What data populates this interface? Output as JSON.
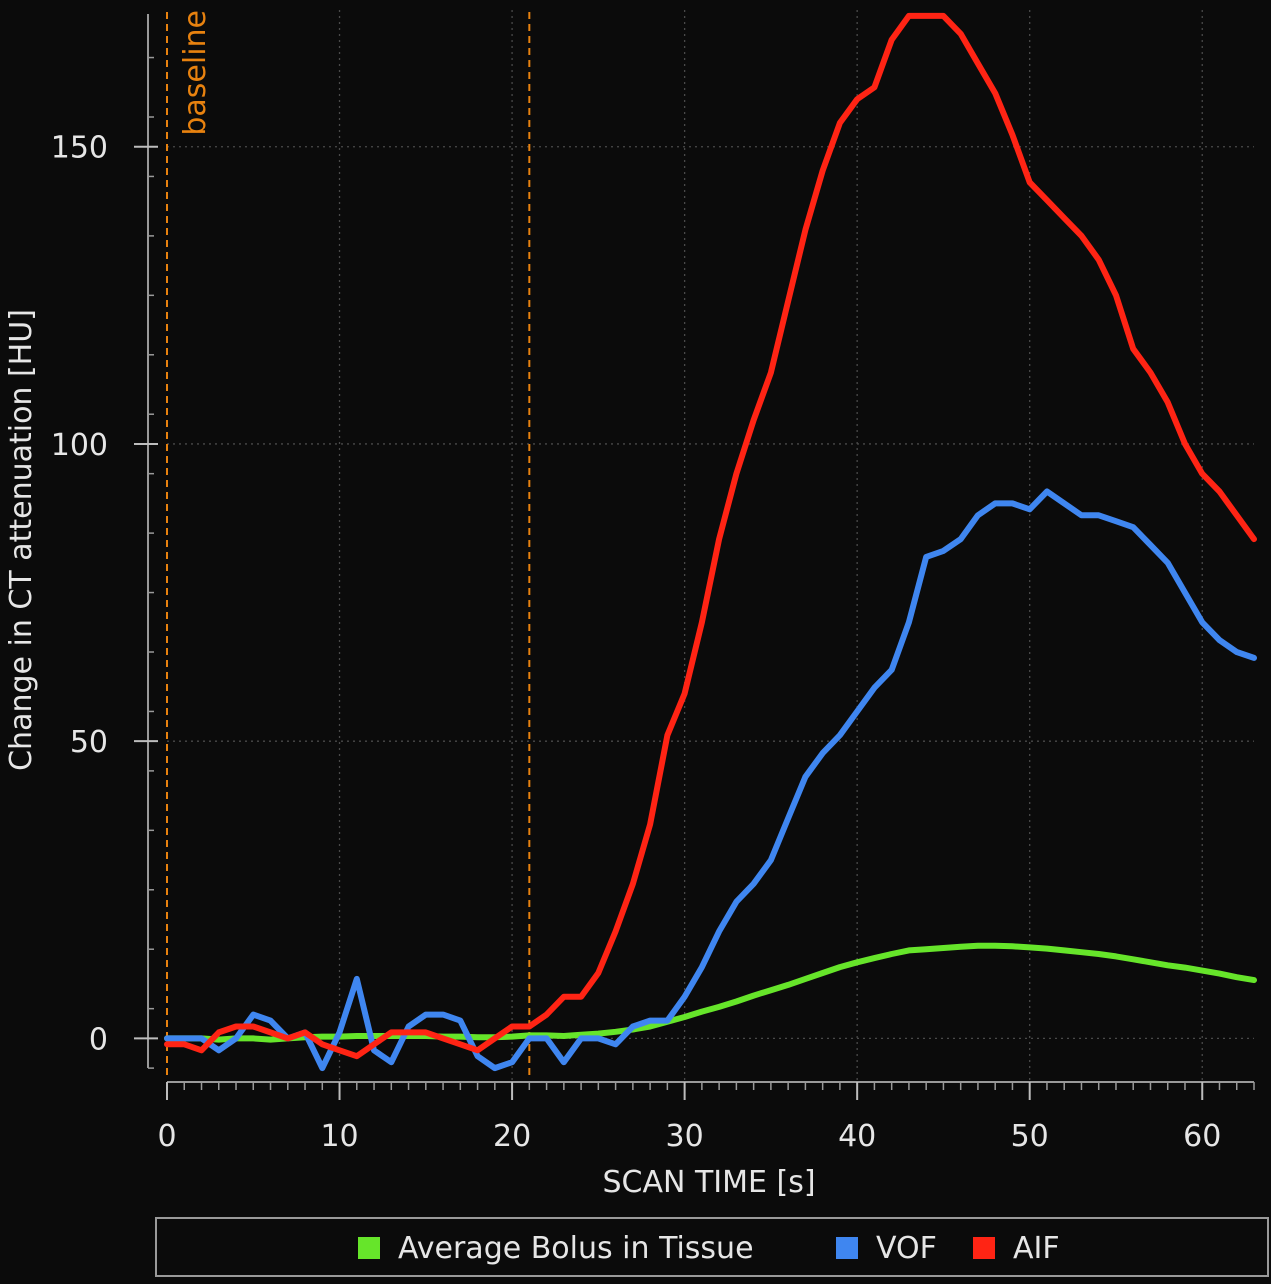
{
  "chart_data": {
    "type": "line",
    "title": "",
    "xlabel": "SCAN TIME [s]",
    "ylabel": "Change in CT attenuation [HU]",
    "xlim": [
      0,
      63
    ],
    "ylim": [
      -7,
      173
    ],
    "x_ticks": [
      0,
      10,
      20,
      30,
      40,
      50,
      60
    ],
    "y_ticks": [
      0,
      50,
      100,
      150
    ],
    "grid": true,
    "legend_position": "bottom",
    "annotations": [
      {
        "type": "vline",
        "x": 0,
        "label": "baseline",
        "color": "#e8820f"
      },
      {
        "type": "vline",
        "x": 21,
        "label": "",
        "color": "#e8820f"
      }
    ],
    "x": [
      0,
      1,
      2,
      3,
      4,
      5,
      6,
      7,
      8,
      9,
      10,
      11,
      12,
      13,
      14,
      15,
      16,
      17,
      18,
      19,
      20,
      21,
      22,
      23,
      24,
      25,
      26,
      27,
      28,
      29,
      30,
      31,
      32,
      33,
      34,
      35,
      36,
      37,
      38,
      39,
      40,
      41,
      42,
      43,
      44,
      45,
      46,
      47,
      48,
      49,
      50,
      51,
      52,
      53,
      54,
      55,
      56,
      57,
      58,
      59,
      60,
      61,
      62,
      63
    ],
    "series": [
      {
        "name": "Average Bolus in Tissue",
        "color": "#66e52a",
        "values": [
          0,
          0,
          0,
          -0.2,
          0,
          0,
          -0.2,
          0,
          0.2,
          0.3,
          0.3,
          0.4,
          0.4,
          0.4,
          0.4,
          0.4,
          0.3,
          0.3,
          0.2,
          0.2,
          0.3,
          0.5,
          0.5,
          0.4,
          0.6,
          0.8,
          1.1,
          1.5,
          2,
          2.8,
          3.6,
          4.5,
          5.3,
          6.2,
          7.2,
          8.1,
          9,
          10,
          11,
          12,
          12.8,
          13.5,
          14.2,
          14.8,
          15,
          15.2,
          15.4,
          15.6,
          15.6,
          15.5,
          15.3,
          15.1,
          14.8,
          14.5,
          14.2,
          13.8,
          13.3,
          12.8,
          12.3,
          11.9,
          11.4,
          10.9,
          10.3,
          9.8
        ]
      },
      {
        "name": "VOF",
        "color": "#3f86f0",
        "values": [
          0,
          0,
          0,
          -2,
          0,
          4,
          3,
          0,
          1,
          -5,
          1,
          10,
          -2,
          -4,
          2,
          4,
          4,
          3,
          -3,
          -5,
          -4,
          0,
          0,
          -4,
          0,
          0,
          -1,
          2,
          3,
          3,
          7,
          12,
          18,
          23,
          26,
          30,
          37,
          44,
          48,
          51,
          55,
          59,
          62,
          70,
          81,
          82,
          84,
          88,
          90,
          90,
          89,
          92,
          90,
          88,
          88,
          87,
          86,
          83,
          80,
          75,
          70,
          67,
          65,
          64
        ]
      },
      {
        "name": "AIF",
        "color": "#ff2414",
        "values": [
          -1,
          -1,
          -2,
          1,
          2,
          2,
          1,
          0,
          1,
          -1,
          -2,
          -3,
          -1,
          1,
          1,
          1,
          0,
          -1,
          -2,
          0,
          2,
          2,
          4,
          7,
          7,
          11,
          18,
          26,
          36,
          51,
          58,
          70,
          84,
          95,
          104,
          112,
          124,
          136,
          146,
          154,
          158,
          160,
          168,
          172,
          172,
          172,
          169,
          164,
          159,
          152,
          144,
          141,
          138,
          135,
          131,
          125,
          116,
          112,
          107,
          100,
          95,
          92,
          88,
          84
        ]
      }
    ]
  }
}
